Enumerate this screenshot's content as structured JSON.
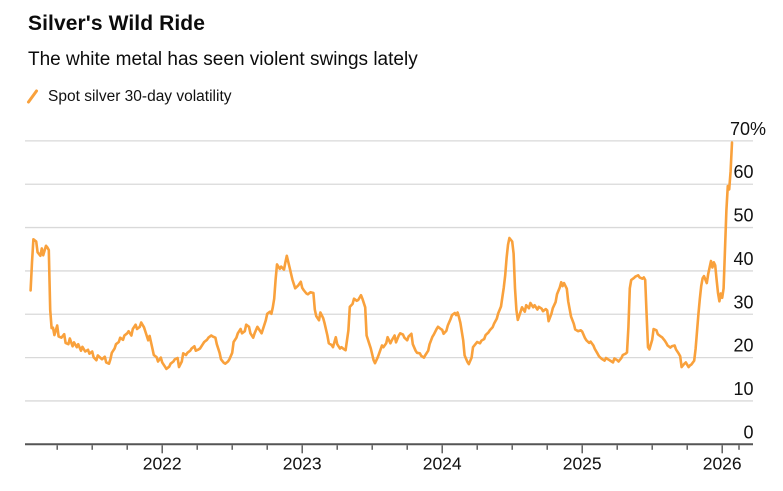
{
  "header": {
    "title": "Silver's Wild Ride",
    "subtitle": "The white metal has seen violent swings lately"
  },
  "legend": {
    "marker": "slash-icon",
    "label": "Spot silver 30-day volatility"
  },
  "colors": {
    "line": "#F9A13C",
    "grid": "#D9D9D9",
    "axis": "#555555",
    "tick": "#555555",
    "text": "#111111"
  },
  "chart_data": {
    "type": "line",
    "title": "Silver's Wild Ride",
    "subtitle": "The white metal has seen violent swings lately",
    "series_name": "Spot silver 30-day volatility",
    "unit": "%",
    "grid": true,
    "legend_position": "top-left",
    "x_axis": {
      "range": [
        2021.02,
        2026.22
      ],
      "ticks_major": [
        2022,
        2023,
        2024,
        2025,
        2026
      ],
      "tick_labels": [
        "2022",
        "2023",
        "2024",
        "2025",
        "2026"
      ],
      "minor_step": 0.25,
      "extra_minor_tick": 2026.12
    },
    "y_axis": {
      "range": [
        0,
        70
      ],
      "ticks": [
        0,
        10,
        20,
        30,
        40,
        50,
        60,
        70
      ],
      "top_tick_label": "70%",
      "side": "right"
    },
    "points": [
      [
        2021.06,
        35.5
      ],
      [
        2021.07,
        42
      ],
      [
        2021.08,
        47.3
      ],
      [
        2021.1,
        46.8
      ],
      [
        2021.11,
        44.3
      ],
      [
        2021.13,
        43.5
      ],
      [
        2021.14,
        45.2
      ],
      [
        2021.15,
        43.6
      ],
      [
        2021.17,
        45.8
      ],
      [
        2021.18,
        45.4
      ],
      [
        2021.19,
        44.8
      ],
      [
        2021.2,
        31
      ],
      [
        2021.21,
        26.8
      ],
      [
        2021.22,
        26.9
      ],
      [
        2021.23,
        25.2
      ],
      [
        2021.25,
        27.4
      ],
      [
        2021.26,
        24.9
      ],
      [
        2021.28,
        24.6
      ],
      [
        2021.3,
        25.4
      ],
      [
        2021.31,
        23.4
      ],
      [
        2021.33,
        23.1
      ],
      [
        2021.34,
        24.4
      ],
      [
        2021.36,
        22.6
      ],
      [
        2021.37,
        23.5
      ],
      [
        2021.39,
        22.4
      ],
      [
        2021.4,
        23.1
      ],
      [
        2021.42,
        21.6
      ],
      [
        2021.43,
        22.5
      ],
      [
        2021.45,
        21.4
      ],
      [
        2021.47,
        21.8
      ],
      [
        2021.48,
        20.9
      ],
      [
        2021.5,
        21.4
      ],
      [
        2021.51,
        20.1
      ],
      [
        2021.53,
        19.4
      ],
      [
        2021.54,
        20.5
      ],
      [
        2021.56,
        19.9
      ],
      [
        2021.57,
        19.6
      ],
      [
        2021.59,
        20.2
      ],
      [
        2021.6,
        18.9
      ],
      [
        2021.62,
        18.6
      ],
      [
        2021.63,
        19.6
      ],
      [
        2021.64,
        21.1
      ],
      [
        2021.66,
        22.1
      ],
      [
        2021.67,
        23.1
      ],
      [
        2021.69,
        23.6
      ],
      [
        2021.7,
        24.6
      ],
      [
        2021.72,
        24.1
      ],
      [
        2021.73,
        25.1
      ],
      [
        2021.75,
        25.6
      ],
      [
        2021.76,
        26.1
      ],
      [
        2021.78,
        25.1
      ],
      [
        2021.79,
        26.6
      ],
      [
        2021.81,
        27.6
      ],
      [
        2021.82,
        26.6
      ],
      [
        2021.84,
        27.1
      ],
      [
        2021.85,
        28.1
      ],
      [
        2021.87,
        27
      ],
      [
        2021.88,
        26
      ],
      [
        2021.9,
        24
      ],
      [
        2021.91,
        25
      ],
      [
        2021.93,
        22.1
      ],
      [
        2021.94,
        20.6
      ],
      [
        2021.96,
        20.1
      ],
      [
        2021.97,
        19.1
      ],
      [
        2021.99,
        20
      ],
      [
        2022,
        18.9
      ],
      [
        2022.02,
        17.9
      ],
      [
        2022.03,
        17.4
      ],
      [
        2022.05,
        17.9
      ],
      [
        2022.06,
        18.6
      ],
      [
        2022.08,
        19.1
      ],
      [
        2022.09,
        19.6
      ],
      [
        2022.11,
        19.9
      ],
      [
        2022.12,
        17.8
      ],
      [
        2022.14,
        19.1
      ],
      [
        2022.15,
        21
      ],
      [
        2022.17,
        20.6
      ],
      [
        2022.18,
        21.1
      ],
      [
        2022.2,
        21.6
      ],
      [
        2022.21,
        22.1
      ],
      [
        2022.23,
        22.6
      ],
      [
        2022.24,
        21.6
      ],
      [
        2022.26,
        21.9
      ],
      [
        2022.27,
        22.1
      ],
      [
        2022.29,
        23.1
      ],
      [
        2022.3,
        23.6
      ],
      [
        2022.32,
        24.1
      ],
      [
        2022.33,
        24.6
      ],
      [
        2022.35,
        25.1
      ],
      [
        2022.36,
        24.9
      ],
      [
        2022.38,
        24.6
      ],
      [
        2022.39,
        23.1
      ],
      [
        2022.41,
        21.1
      ],
      [
        2022.42,
        19.6
      ],
      [
        2022.44,
        18.8
      ],
      [
        2022.45,
        18.6
      ],
      [
        2022.47,
        19.1
      ],
      [
        2022.48,
        19.6
      ],
      [
        2022.5,
        21.1
      ],
      [
        2022.51,
        23.6
      ],
      [
        2022.53,
        24.6
      ],
      [
        2022.54,
        25.6
      ],
      [
        2022.56,
        26.6
      ],
      [
        2022.57,
        25.6
      ],
      [
        2022.59,
        26.1
      ],
      [
        2022.6,
        27.6
      ],
      [
        2022.62,
        27.1
      ],
      [
        2022.63,
        25.6
      ],
      [
        2022.65,
        24.6
      ],
      [
        2022.66,
        25.6
      ],
      [
        2022.68,
        27.1
      ],
      [
        2022.69,
        26.6
      ],
      [
        2022.71,
        25.6
      ],
      [
        2022.72,
        26.6
      ],
      [
        2022.74,
        28.6
      ],
      [
        2022.75,
        30.1
      ],
      [
        2022.77,
        30.6
      ],
      [
        2022.78,
        30.1
      ],
      [
        2022.79,
        31.6
      ],
      [
        2022.8,
        33.6
      ],
      [
        2022.81,
        38
      ],
      [
        2022.82,
        41.5
      ],
      [
        2022.84,
        40.5
      ],
      [
        2022.85,
        41
      ],
      [
        2022.87,
        40.3
      ],
      [
        2022.88,
        42
      ],
      [
        2022.89,
        43.5
      ],
      [
        2022.91,
        40.8
      ],
      [
        2022.93,
        38
      ],
      [
        2022.95,
        36
      ],
      [
        2022.97,
        36.6
      ],
      [
        2022.99,
        37.5
      ],
      [
        2023,
        36.1
      ],
      [
        2023.01,
        35.6
      ],
      [
        2023.03,
        34.8
      ],
      [
        2023.04,
        34.6
      ],
      [
        2023.06,
        35.1
      ],
      [
        2023.08,
        34.9
      ],
      [
        2023.09,
        31.1
      ],
      [
        2023.1,
        29.6
      ],
      [
        2023.12,
        28.6
      ],
      [
        2023.13,
        30.4
      ],
      [
        2023.15,
        29.1
      ],
      [
        2023.16,
        27.9
      ],
      [
        2023.18,
        25.1
      ],
      [
        2023.19,
        23.3
      ],
      [
        2023.21,
        22.9
      ],
      [
        2023.22,
        22.4
      ],
      [
        2023.24,
        24.7
      ],
      [
        2023.25,
        23.1
      ],
      [
        2023.27,
        22.1
      ],
      [
        2023.28,
        22.4
      ],
      [
        2023.3,
        21.9
      ],
      [
        2023.31,
        21.7
      ],
      [
        2023.33,
        26.3
      ],
      [
        2023.34,
        31.7
      ],
      [
        2023.36,
        32.4
      ],
      [
        2023.37,
        33.6
      ],
      [
        2023.39,
        33.1
      ],
      [
        2023.4,
        33.3
      ],
      [
        2023.42,
        34.4
      ],
      [
        2023.43,
        33.6
      ],
      [
        2023.45,
        31.6
      ],
      [
        2023.46,
        25.1
      ],
      [
        2023.48,
        23.1
      ],
      [
        2023.49,
        22.1
      ],
      [
        2023.51,
        19.4
      ],
      [
        2023.52,
        18.7
      ],
      [
        2023.54,
        20.1
      ],
      [
        2023.55,
        21
      ],
      [
        2023.57,
        22.8
      ],
      [
        2023.58,
        22.4
      ],
      [
        2023.6,
        23.3
      ],
      [
        2023.61,
        24.7
      ],
      [
        2023.63,
        23.3
      ],
      [
        2023.64,
        24
      ],
      [
        2023.66,
        25.1
      ],
      [
        2023.67,
        23.5
      ],
      [
        2023.69,
        25.1
      ],
      [
        2023.7,
        25.6
      ],
      [
        2023.72,
        25.3
      ],
      [
        2023.73,
        24.6
      ],
      [
        2023.75,
        24
      ],
      [
        2023.76,
        24.9
      ],
      [
        2023.78,
        25.5
      ],
      [
        2023.79,
        23.1
      ],
      [
        2023.81,
        21.6
      ],
      [
        2023.82,
        21.1
      ],
      [
        2023.84,
        21
      ],
      [
        2023.85,
        20.4
      ],
      [
        2023.87,
        20
      ],
      [
        2023.88,
        20.6
      ],
      [
        2023.9,
        21.6
      ],
      [
        2023.91,
        23.1
      ],
      [
        2023.93,
        24.8
      ],
      [
        2023.94,
        25.3
      ],
      [
        2023.96,
        26.6
      ],
      [
        2023.97,
        27.1
      ],
      [
        2023.99,
        26.6
      ],
      [
        2024,
        26.4
      ],
      [
        2024.01,
        25.5
      ],
      [
        2024.03,
        26.2
      ],
      [
        2024.04,
        27.4
      ],
      [
        2024.06,
        28.9
      ],
      [
        2024.07,
        29.8
      ],
      [
        2024.09,
        30.3
      ],
      [
        2024.1,
        29.8
      ],
      [
        2024.11,
        30.4
      ],
      [
        2024.12,
        29.3
      ],
      [
        2024.13,
        28
      ],
      [
        2024.15,
        24
      ],
      [
        2024.16,
        20.5
      ],
      [
        2024.18,
        19
      ],
      [
        2024.19,
        18.5
      ],
      [
        2024.21,
        20
      ],
      [
        2024.22,
        22.4
      ],
      [
        2024.24,
        23.2
      ],
      [
        2024.25,
        23.6
      ],
      [
        2024.27,
        23.3
      ],
      [
        2024.28,
        23.9
      ],
      [
        2024.3,
        24.3
      ],
      [
        2024.31,
        25.2
      ],
      [
        2024.33,
        25.8
      ],
      [
        2024.34,
        26.3
      ],
      [
        2024.36,
        27
      ],
      [
        2024.37,
        27.8
      ],
      [
        2024.39,
        29
      ],
      [
        2024.4,
        30.2
      ],
      [
        2024.42,
        31.8
      ],
      [
        2024.43,
        34
      ],
      [
        2024.44,
        36.2
      ],
      [
        2024.45,
        39
      ],
      [
        2024.46,
        43
      ],
      [
        2024.47,
        46
      ],
      [
        2024.48,
        47.6
      ],
      [
        2024.5,
        46.8
      ],
      [
        2024.51,
        44
      ],
      [
        2024.52,
        36
      ],
      [
        2024.53,
        31
      ],
      [
        2024.54,
        28.7
      ],
      [
        2024.56,
        30.6
      ],
      [
        2024.57,
        31.6
      ],
      [
        2024.59,
        30.6
      ],
      [
        2024.6,
        32.1
      ],
      [
        2024.62,
        31.4
      ],
      [
        2024.63,
        32.6
      ],
      [
        2024.65,
        31.6
      ],
      [
        2024.66,
        32.1
      ],
      [
        2024.68,
        31.1
      ],
      [
        2024.69,
        31.7
      ],
      [
        2024.71,
        31.3
      ],
      [
        2024.72,
        30.7
      ],
      [
        2024.74,
        31.2
      ],
      [
        2024.75,
        30.9
      ],
      [
        2024.76,
        28.4
      ],
      [
        2024.78,
        30.1
      ],
      [
        2024.79,
        31.4
      ],
      [
        2024.81,
        32.8
      ],
      [
        2024.82,
        34.6
      ],
      [
        2024.84,
        36.2
      ],
      [
        2024.85,
        37.4
      ],
      [
        2024.86,
        36.5
      ],
      [
        2024.87,
        37.2
      ],
      [
        2024.89,
        35.9
      ],
      [
        2024.9,
        33
      ],
      [
        2024.92,
        29.5
      ],
      [
        2024.94,
        27.8
      ],
      [
        2024.95,
        26.5
      ],
      [
        2024.97,
        26.1
      ],
      [
        2024.99,
        26.3
      ],
      [
        2025,
        26
      ],
      [
        2025.02,
        24.5
      ],
      [
        2025.03,
        24
      ],
      [
        2025.05,
        23.4
      ],
      [
        2025.06,
        23.7
      ],
      [
        2025.08,
        22.8
      ],
      [
        2025.09,
        22
      ],
      [
        2025.11,
        20.9
      ],
      [
        2025.12,
        20.3
      ],
      [
        2025.14,
        19.7
      ],
      [
        2025.16,
        19.3
      ],
      [
        2025.17,
        19.9
      ],
      [
        2025.19,
        19.5
      ],
      [
        2025.2,
        19.3
      ],
      [
        2025.22,
        18.9
      ],
      [
        2025.23,
        19.8
      ],
      [
        2025.25,
        19.4
      ],
      [
        2025.26,
        19.1
      ],
      [
        2025.28,
        19.9
      ],
      [
        2025.29,
        20.6
      ],
      [
        2025.31,
        20.9
      ],
      [
        2025.32,
        21.2
      ],
      [
        2025.33,
        27
      ],
      [
        2025.34,
        36
      ],
      [
        2025.35,
        37.9
      ],
      [
        2025.37,
        38.4
      ],
      [
        2025.38,
        38.7
      ],
      [
        2025.4,
        39
      ],
      [
        2025.41,
        38.5
      ],
      [
        2025.43,
        38.2
      ],
      [
        2025.44,
        38.5
      ],
      [
        2025.45,
        37.9
      ],
      [
        2025.46,
        30
      ],
      [
        2025.47,
        22.4
      ],
      [
        2025.48,
        21.9
      ],
      [
        2025.5,
        24.1
      ],
      [
        2025.51,
        26.6
      ],
      [
        2025.53,
        26.3
      ],
      [
        2025.54,
        25.4
      ],
      [
        2025.56,
        24.9
      ],
      [
        2025.57,
        24.7
      ],
      [
        2025.59,
        23.9
      ],
      [
        2025.6,
        23.4
      ],
      [
        2025.61,
        22.8
      ],
      [
        2025.63,
        22.3
      ],
      [
        2025.64,
        22.6
      ],
      [
        2025.66,
        22.8
      ],
      [
        2025.67,
        21.9
      ],
      [
        2025.69,
        20.9
      ],
      [
        2025.7,
        20.3
      ],
      [
        2025.71,
        17.8
      ],
      [
        2025.73,
        18.6
      ],
      [
        2025.74,
        18.9
      ],
      [
        2025.76,
        17.8
      ],
      [
        2025.77,
        18.2
      ],
      [
        2025.78,
        18.4
      ],
      [
        2025.8,
        19.3
      ],
      [
        2025.81,
        22
      ],
      [
        2025.82,
        26
      ],
      [
        2025.83,
        30
      ],
      [
        2025.84,
        33.5
      ],
      [
        2025.85,
        36.5
      ],
      [
        2025.86,
        38.3
      ],
      [
        2025.87,
        38.8
      ],
      [
        2025.88,
        38
      ],
      [
        2025.89,
        37.2
      ],
      [
        2025.9,
        39.3
      ],
      [
        2025.91,
        40.8
      ],
      [
        2025.92,
        42.3
      ],
      [
        2025.93,
        40.8
      ],
      [
        2025.94,
        42
      ],
      [
        2025.95,
        41.3
      ],
      [
        2025.96,
        38
      ],
      [
        2025.97,
        34.9
      ],
      [
        2025.98,
        33
      ],
      [
        2025.99,
        34.8
      ],
      [
        2026,
        33.8
      ],
      [
        2026.01,
        36
      ],
      [
        2026.02,
        45
      ],
      [
        2026.03,
        54
      ],
      [
        2026.04,
        59.6
      ],
      [
        2026.05,
        58.8
      ],
      [
        2026.06,
        63
      ],
      [
        2026.07,
        69.6
      ]
    ]
  }
}
